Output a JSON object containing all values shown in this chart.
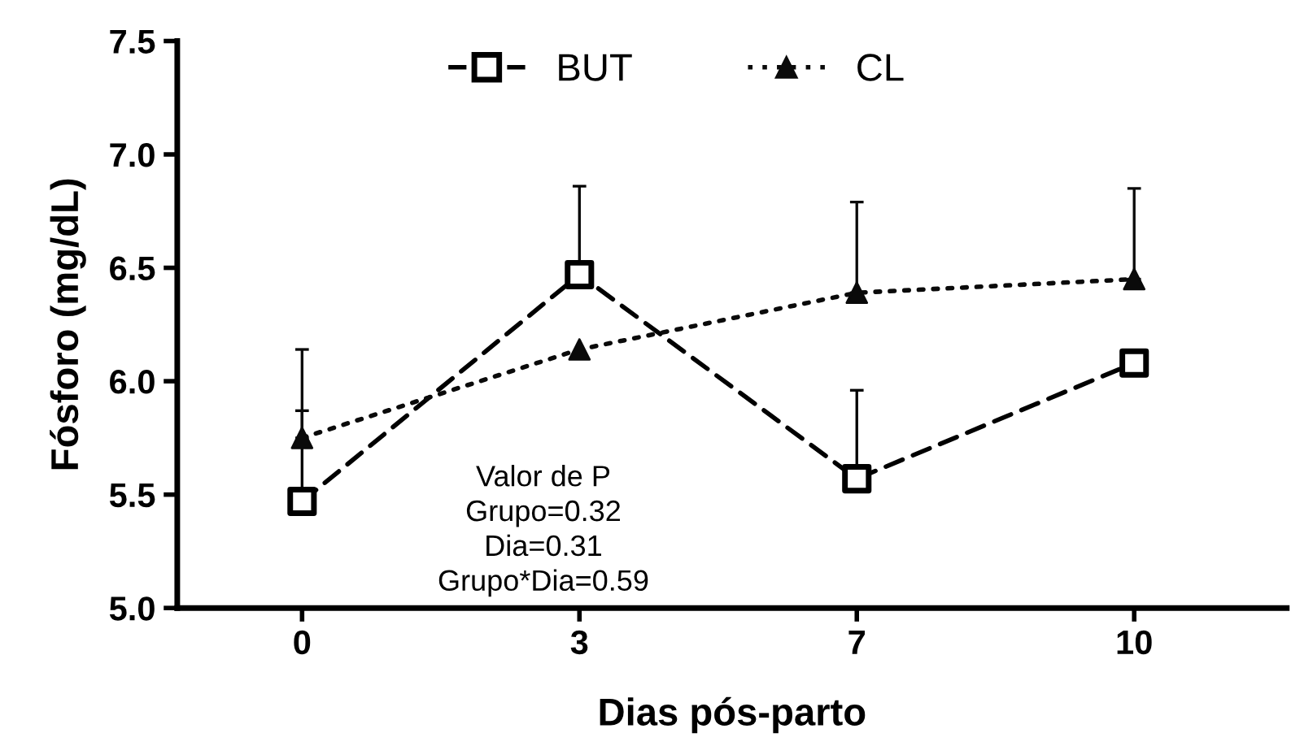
{
  "chart_data": {
    "type": "line",
    "categories": [
      "0",
      "3",
      "7",
      "10"
    ],
    "xlabel": "Dias pós-parto",
    "ylabel": "Fósforo (mg/dL)",
    "ylim": [
      5.0,
      7.5
    ],
    "yticks": [
      {
        "value": 5.0,
        "label": "5.0"
      },
      {
        "value": 5.5,
        "label": "5.5"
      },
      {
        "value": 6.0,
        "label": "6.0"
      },
      {
        "value": 6.5,
        "label": "6.5"
      },
      {
        "value": 7.0,
        "label": "7.0"
      },
      {
        "value": 7.5,
        "label": "7.5"
      }
    ],
    "series": [
      {
        "name": "BUT",
        "color": "#000000",
        "marker": "square",
        "line_style": "dashed",
        "values": [
          5.47,
          6.47,
          5.57,
          6.08
        ],
        "errors": [
          [
            5.47,
            5.87
          ],
          [
            6.47,
            6.86
          ],
          [
            5.57,
            5.96
          ],
          null
        ]
      },
      {
        "name": "CL",
        "color": "#0a0a0a",
        "marker": "triangle",
        "line_style": "dotted",
        "values": [
          5.75,
          6.14,
          6.39,
          6.45
        ],
        "errors": [
          [
            5.75,
            6.14
          ],
          null,
          [
            6.39,
            6.79
          ],
          [
            6.45,
            6.85
          ]
        ]
      }
    ],
    "annotations": [
      "Valor de P\nGrupo=0.32\nDia=0.31\nGrupo*Dia=0.59"
    ],
    "legend": "top",
    "grid": false
  }
}
